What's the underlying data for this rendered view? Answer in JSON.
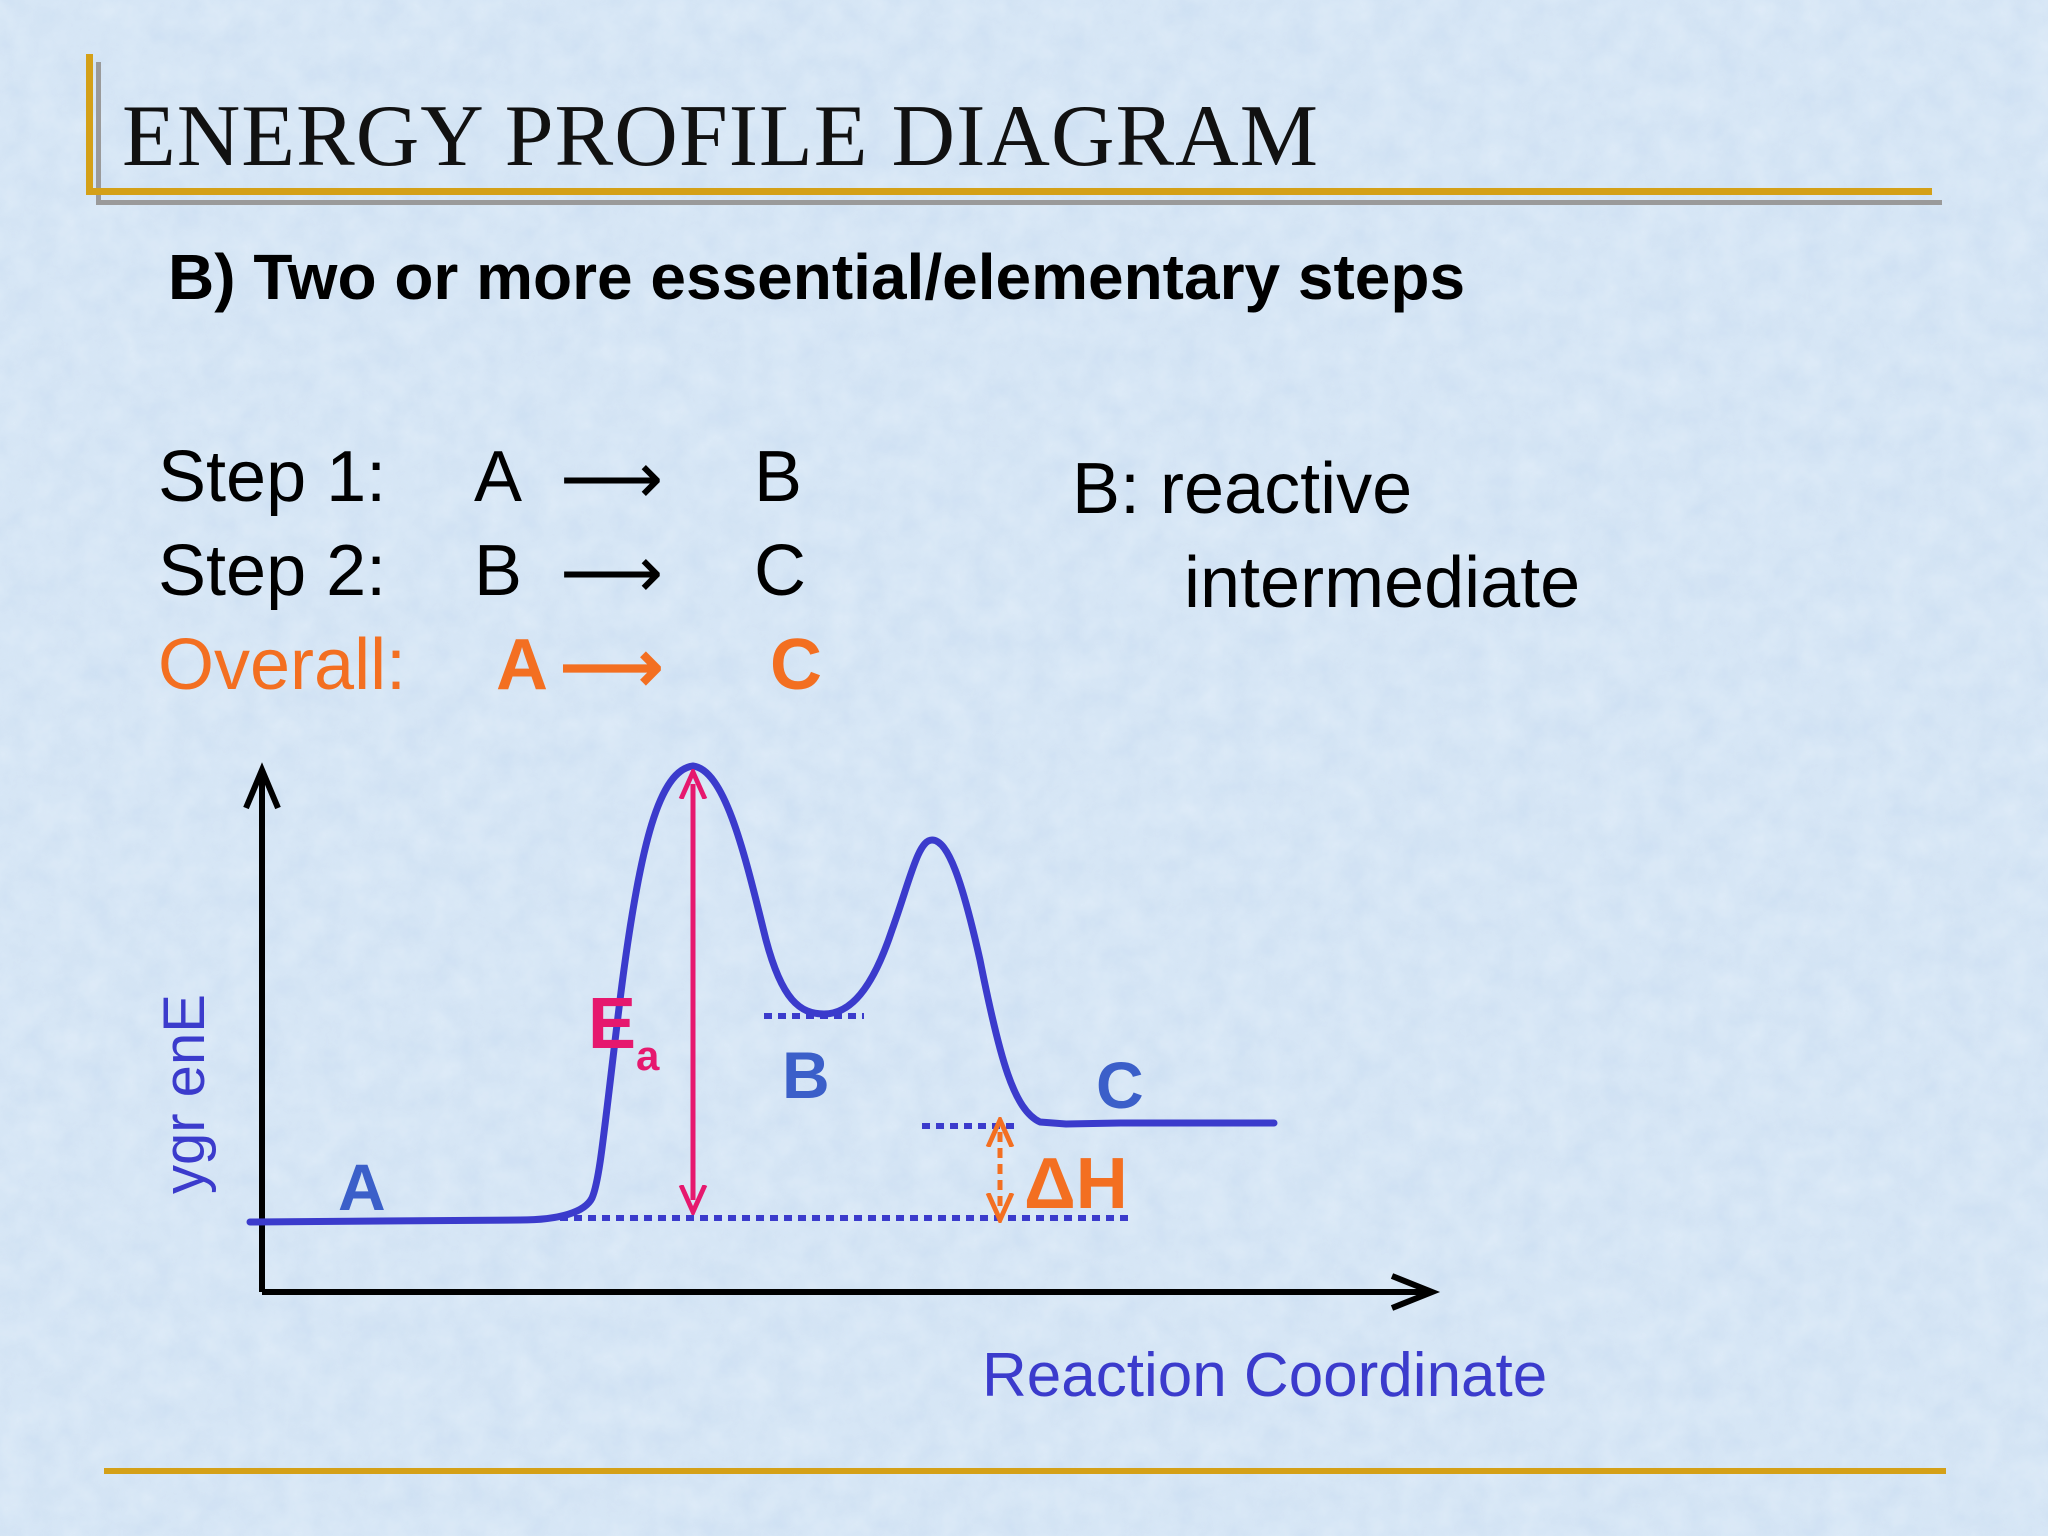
{
  "slide": {
    "title": "ENERGY PROFILE DIAGRAM",
    "subtitle": "B) Two or more essential/elementary steps",
    "colors": {
      "accent_gold": "#d4a017",
      "divider_gray": "#9a9a9a",
      "curve_blue": "#3b3bcc",
      "label_blue": "#3b5fc9",
      "overall_orange": "#f36f21",
      "ea_pink": "#e6186e"
    }
  },
  "steps": [
    {
      "label": "Step 1:",
      "reactant": "A",
      "arrow": "⟶",
      "product": "B",
      "color": "#000000",
      "bold_species": false
    },
    {
      "label": "Step 2:",
      "reactant": "B",
      "arrow": "⟶",
      "product": "C",
      "color": "#000000",
      "bold_species": false
    },
    {
      "label": "Overall:",
      "reactant": "A",
      "arrow": "⟶",
      "product": "C",
      "color": "#f36f21",
      "bold_species": true
    }
  ],
  "note": {
    "line1": "B: reactive",
    "line2": "intermediate"
  },
  "diagram": {
    "y_axis_label": "ygr enE",
    "x_axis_label": "Reaction Coordinate",
    "species": {
      "A": "A",
      "B": "B",
      "C": "C"
    },
    "ea_label": "E",
    "ea_subscript": "a",
    "dh_label": "ΔH"
  }
}
